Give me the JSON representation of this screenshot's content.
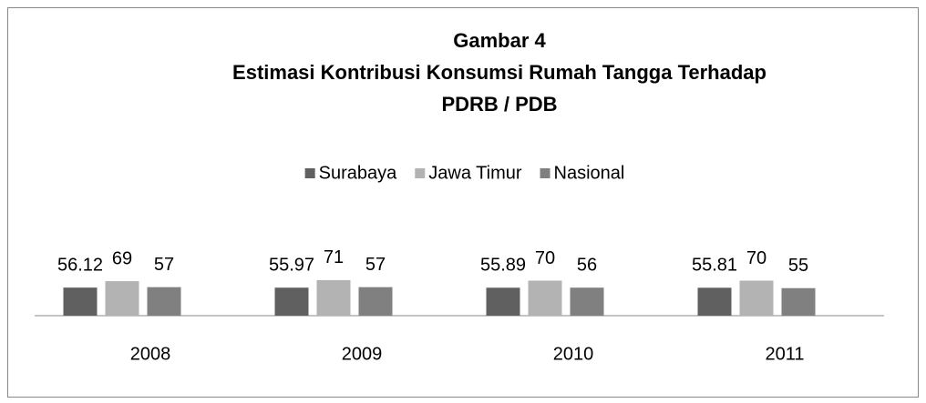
{
  "chart_data": {
    "type": "bar",
    "title": [
      "Gambar 4",
      "Estimasi Kontribusi Konsumsi Rumah Tangga Terhadap",
      "PDRB / PDB"
    ],
    "categories": [
      "2008",
      "2009",
      "2010",
      "2011"
    ],
    "series": [
      {
        "name": "Surabaya",
        "color": "#606060",
        "values": [
          56.12,
          55.97,
          55.89,
          55.81
        ]
      },
      {
        "name": "Jawa Timur",
        "color": "#b3b3b3",
        "values": [
          69,
          71,
          70,
          70
        ]
      },
      {
        "name": "Nasional",
        "color": "#808080",
        "values": [
          57,
          57,
          56,
          55
        ]
      }
    ],
    "legend": "top"
  }
}
